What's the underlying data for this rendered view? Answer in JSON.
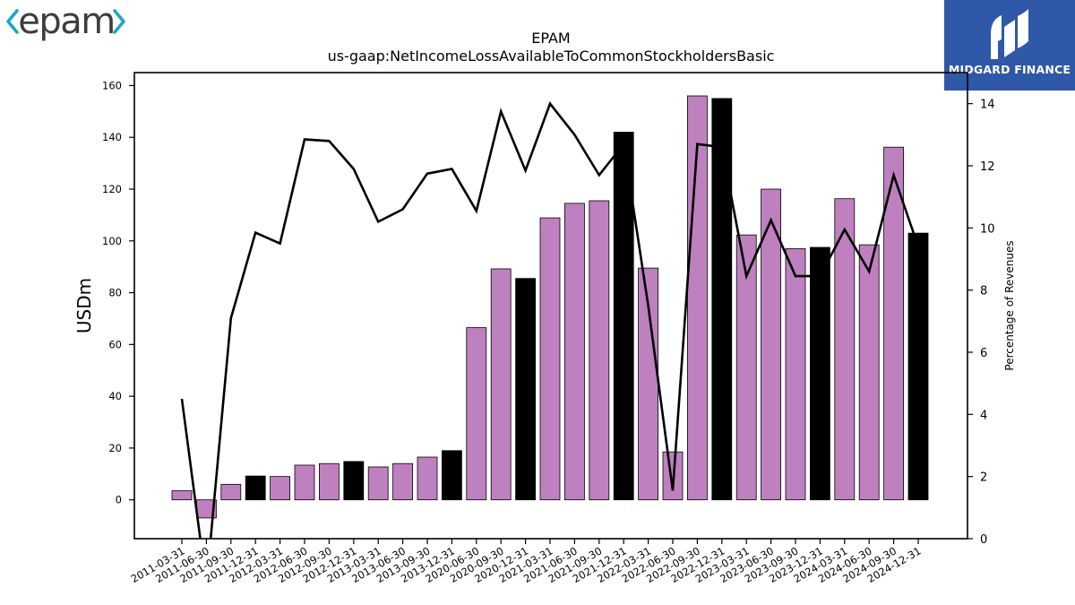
{
  "branding": {
    "company_logo_text": "epam",
    "company_logo_color": "#3d3d3d",
    "company_accent_color": "#1aa6c8",
    "publisher_name": "MIDGARD FINANCE",
    "publisher_bg_color": "#2f58a8"
  },
  "chart_data": {
    "type": "bar",
    "title": "EPAM",
    "subtitle": "us-gaap:NetIncomeLossAvailableToCommonStockholdersBasic",
    "ylabel": "USDm",
    "y2label": "Percentage of Revenues",
    "ylim": [
      -15,
      165
    ],
    "y2lim": [
      0,
      15
    ],
    "yticks": [
      0,
      20,
      40,
      60,
      80,
      100,
      120,
      140,
      160
    ],
    "y2ticks": [
      0,
      2,
      4,
      6,
      8,
      10,
      12,
      14
    ],
    "grid": false,
    "categories": [
      "2011-03-31",
      "2011-06-30",
      "2011-09-30",
      "2011-12-31",
      "2012-03-31",
      "2012-06-30",
      "2012-09-30",
      "2012-12-31",
      "2013-03-31",
      "2013-06-30",
      "2013-09-30",
      "2013-12-31",
      "2020-06-30",
      "2020-09-30",
      "2020-12-31",
      "2021-03-31",
      "2021-06-30",
      "2021-09-30",
      "2021-12-31",
      "2022-03-31",
      "2022-06-30",
      "2022-09-30",
      "2022-12-31",
      "2023-03-31",
      "2023-06-30",
      "2023-09-30",
      "2023-12-31",
      "2024-03-31",
      "2024-06-30",
      "2024-09-30",
      "2024-12-31"
    ],
    "series": [
      {
        "kind": "bar",
        "axis": "left",
        "values": [
          3.5,
          -7,
          6,
          9.2,
          9,
          13.4,
          14,
          14.8,
          12.7,
          14,
          16.5,
          19,
          66.5,
          89.2,
          85.5,
          108.9,
          114.5,
          115.5,
          142,
          89.5,
          18.5,
          156,
          155,
          102.3,
          120,
          97,
          97.5,
          116.3,
          98.5,
          136.2,
          103
        ],
        "colors": [
          "#bf80bf",
          "#bf80bf",
          "#bf80bf",
          "#000000",
          "#bf80bf",
          "#bf80bf",
          "#bf80bf",
          "#000000",
          "#bf80bf",
          "#bf80bf",
          "#bf80bf",
          "#000000",
          "#bf80bf",
          "#bf80bf",
          "#000000",
          "#bf80bf",
          "#bf80bf",
          "#bf80bf",
          "#000000",
          "#bf80bf",
          "#bf80bf",
          "#bf80bf",
          "#000000",
          "#bf80bf",
          "#bf80bf",
          "#bf80bf",
          "#000000",
          "#bf80bf",
          "#bf80bf",
          "#bf80bf",
          "#000000"
        ]
      },
      {
        "kind": "line",
        "axis": "right",
        "color": "#000000",
        "values": [
          4.5,
          -1.5,
          7.1,
          9.85,
          9.5,
          12.85,
          12.8,
          11.9,
          10.2,
          10.6,
          11.75,
          11.9,
          10.55,
          13.75,
          11.85,
          14,
          13,
          11.7,
          12.7,
          7.5,
          1.55,
          12.7,
          12.6,
          8.45,
          10.25,
          8.45,
          8.45,
          9.95,
          8.6,
          11.7,
          9.4
        ]
      }
    ]
  }
}
